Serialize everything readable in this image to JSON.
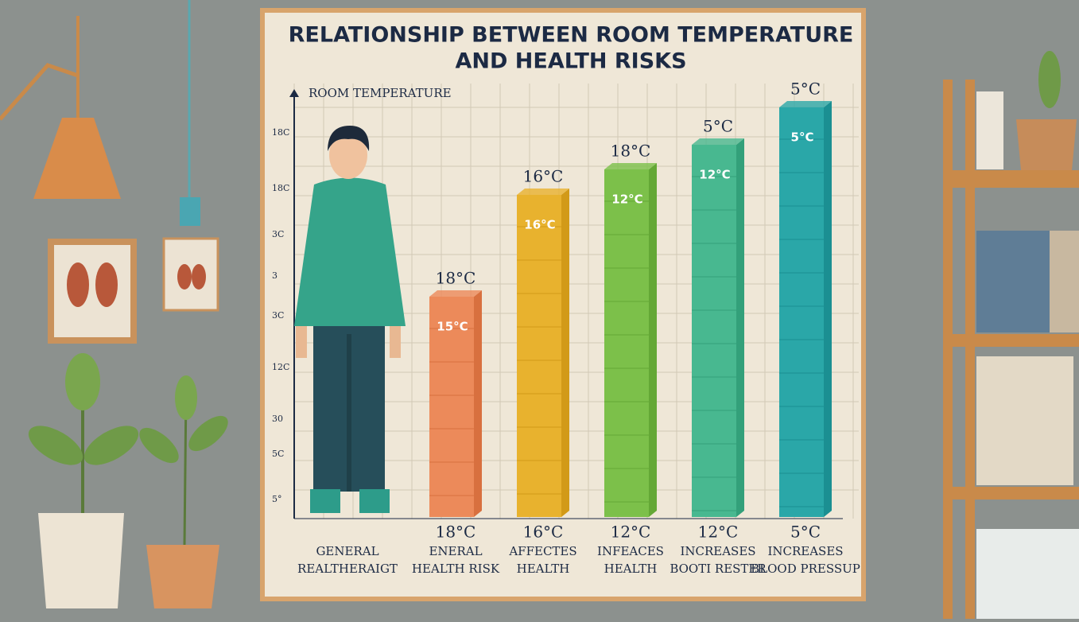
{
  "poster": {
    "title": [
      "RELATIONSHIP BETWEEN ROOM TEMPERATURE",
      "AND HEALTH RISKS"
    ],
    "axis_label": "ROOM TEMPERATURE",
    "axis_ticks": [
      "18C",
      "18C",
      "3C",
      "3",
      "3C",
      "12C",
      "30",
      "5C",
      "5°"
    ],
    "first_caption": [
      "GENERAL",
      "REALTHERAIGT"
    ],
    "bars": [
      {
        "top_label": "18°C",
        "inner_label": "15°C",
        "bottom_label": "18°C",
        "caption": [
          "ENERAL",
          "HEALTH RISK"
        ]
      },
      {
        "top_label": "16°C",
        "inner_label": "16°C",
        "bottom_label": "16°C",
        "caption": [
          "AFFECTES",
          "HEALTH"
        ]
      },
      {
        "top_label": "18°C",
        "inner_label": "12°C",
        "bottom_label": "12°C",
        "caption": [
          "INFEACES",
          "HEALTH"
        ]
      },
      {
        "top_label": "5°C",
        "inner_label": "12°C",
        "bottom_label": "12°C",
        "caption": [
          "INCREASES",
          "BOOTI RESTER"
        ]
      },
      {
        "top_label": "5°C",
        "inner_label": "5°C",
        "bottom_label": "5°C",
        "caption": [
          "INCREASES",
          "BLOOD PRESSUP"
        ]
      }
    ]
  }
}
